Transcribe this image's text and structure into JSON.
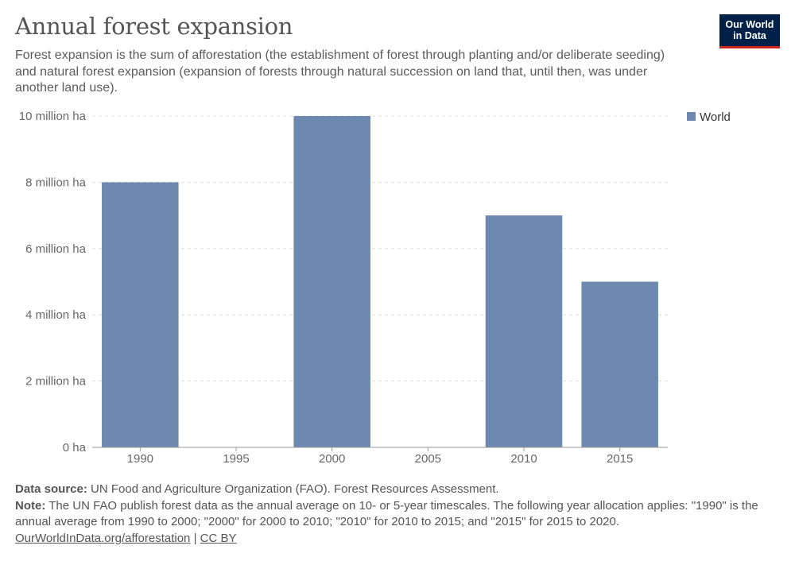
{
  "header": {
    "title": "Annual forest expansion",
    "subtitle": "Forest expansion is the sum of afforestation (the establishment of forest through planting and/or deliberate seeding) and natural forest expansion (expansion of forests through natural succession on land that, until then, was under another land use)."
  },
  "logo": {
    "line1": "Our World",
    "line2": "in Data",
    "bg_color": "#002147",
    "accent_color": "#ce261e"
  },
  "chart_data": {
    "type": "bar",
    "title": "Annual forest expansion",
    "categories": [
      "1990",
      "1995",
      "2000",
      "2005",
      "2010",
      "2015"
    ],
    "series": [
      {
        "name": "World",
        "color": "#6e89b0",
        "values": [
          8000000,
          null,
          10000000,
          null,
          7000000,
          5000000
        ]
      }
    ],
    "ylim": [
      0,
      10000000
    ],
    "yticks": [
      0,
      2000000,
      4000000,
      6000000,
      8000000,
      10000000
    ],
    "ytick_labels": [
      "0 ha",
      "2 million ha",
      "4 million ha",
      "6 million ha",
      "8 million ha",
      "10 million ha"
    ],
    "grid": true,
    "legend_position": "right"
  },
  "footer": {
    "source_label": "Data source:",
    "source_text": "UN Food and Agriculture Organization (FAO). Forest Resources Assessment.",
    "note_label": "Note:",
    "note_text": "The UN FAO publish forest data as the annual average on 10- or 5-year timescales. The following year allocation applies: \"1990\" is the annual average from 1990 to 2000; \"2000\" for 2000 to 2010; \"2010\" for 2010 to 2015; and \"2015\" for 2015 to 2020.",
    "link_text": "OurWorldInData.org/afforestation",
    "separator": "|",
    "license_text": "CC BY"
  }
}
